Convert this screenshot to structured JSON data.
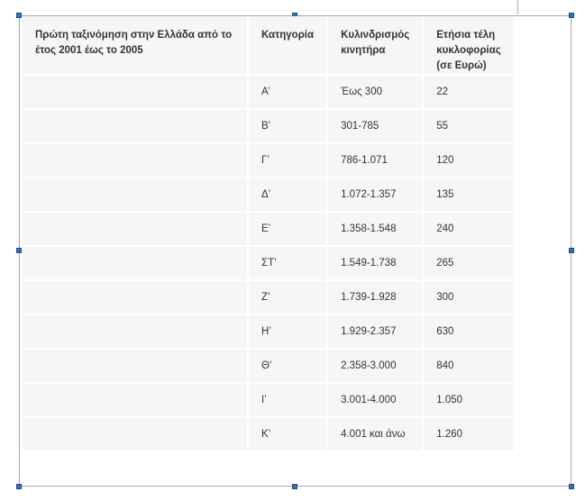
{
  "table": {
    "headers": [
      "Πρώτη ταξινόμηση στην Ελλάδα από το έτος 2001 έως το 2005",
      "Κατηγορία",
      "Κυλινδρισμός κινητήρα",
      "Ετήσια τέλη κυκλοφορίας (σε Ευρώ)"
    ],
    "rows": [
      [
        "",
        "Α’",
        "Έως 300",
        "22"
      ],
      [
        "",
        "Β’",
        "301-785",
        "55"
      ],
      [
        "",
        "Γ’",
        "786-1.071",
        "120"
      ],
      [
        "",
        "Δ’",
        "1.072-1.357",
        "135"
      ],
      [
        "",
        "Ε’",
        "1.358-1.548",
        "240"
      ],
      [
        "",
        "ΣΤ’",
        "1.549-1.738",
        "265"
      ],
      [
        "",
        "Ζ’",
        "1.739-1.928",
        "300"
      ],
      [
        "",
        "Η’",
        "1.929-2.357",
        "630"
      ],
      [
        "",
        "Θ’",
        "2.358-3.000",
        "840"
      ],
      [
        "",
        "Ι’",
        "3.001-4.000",
        "1.050"
      ],
      [
        "",
        "Κ’",
        "4.001 και άνω",
        "1.260"
      ]
    ]
  }
}
